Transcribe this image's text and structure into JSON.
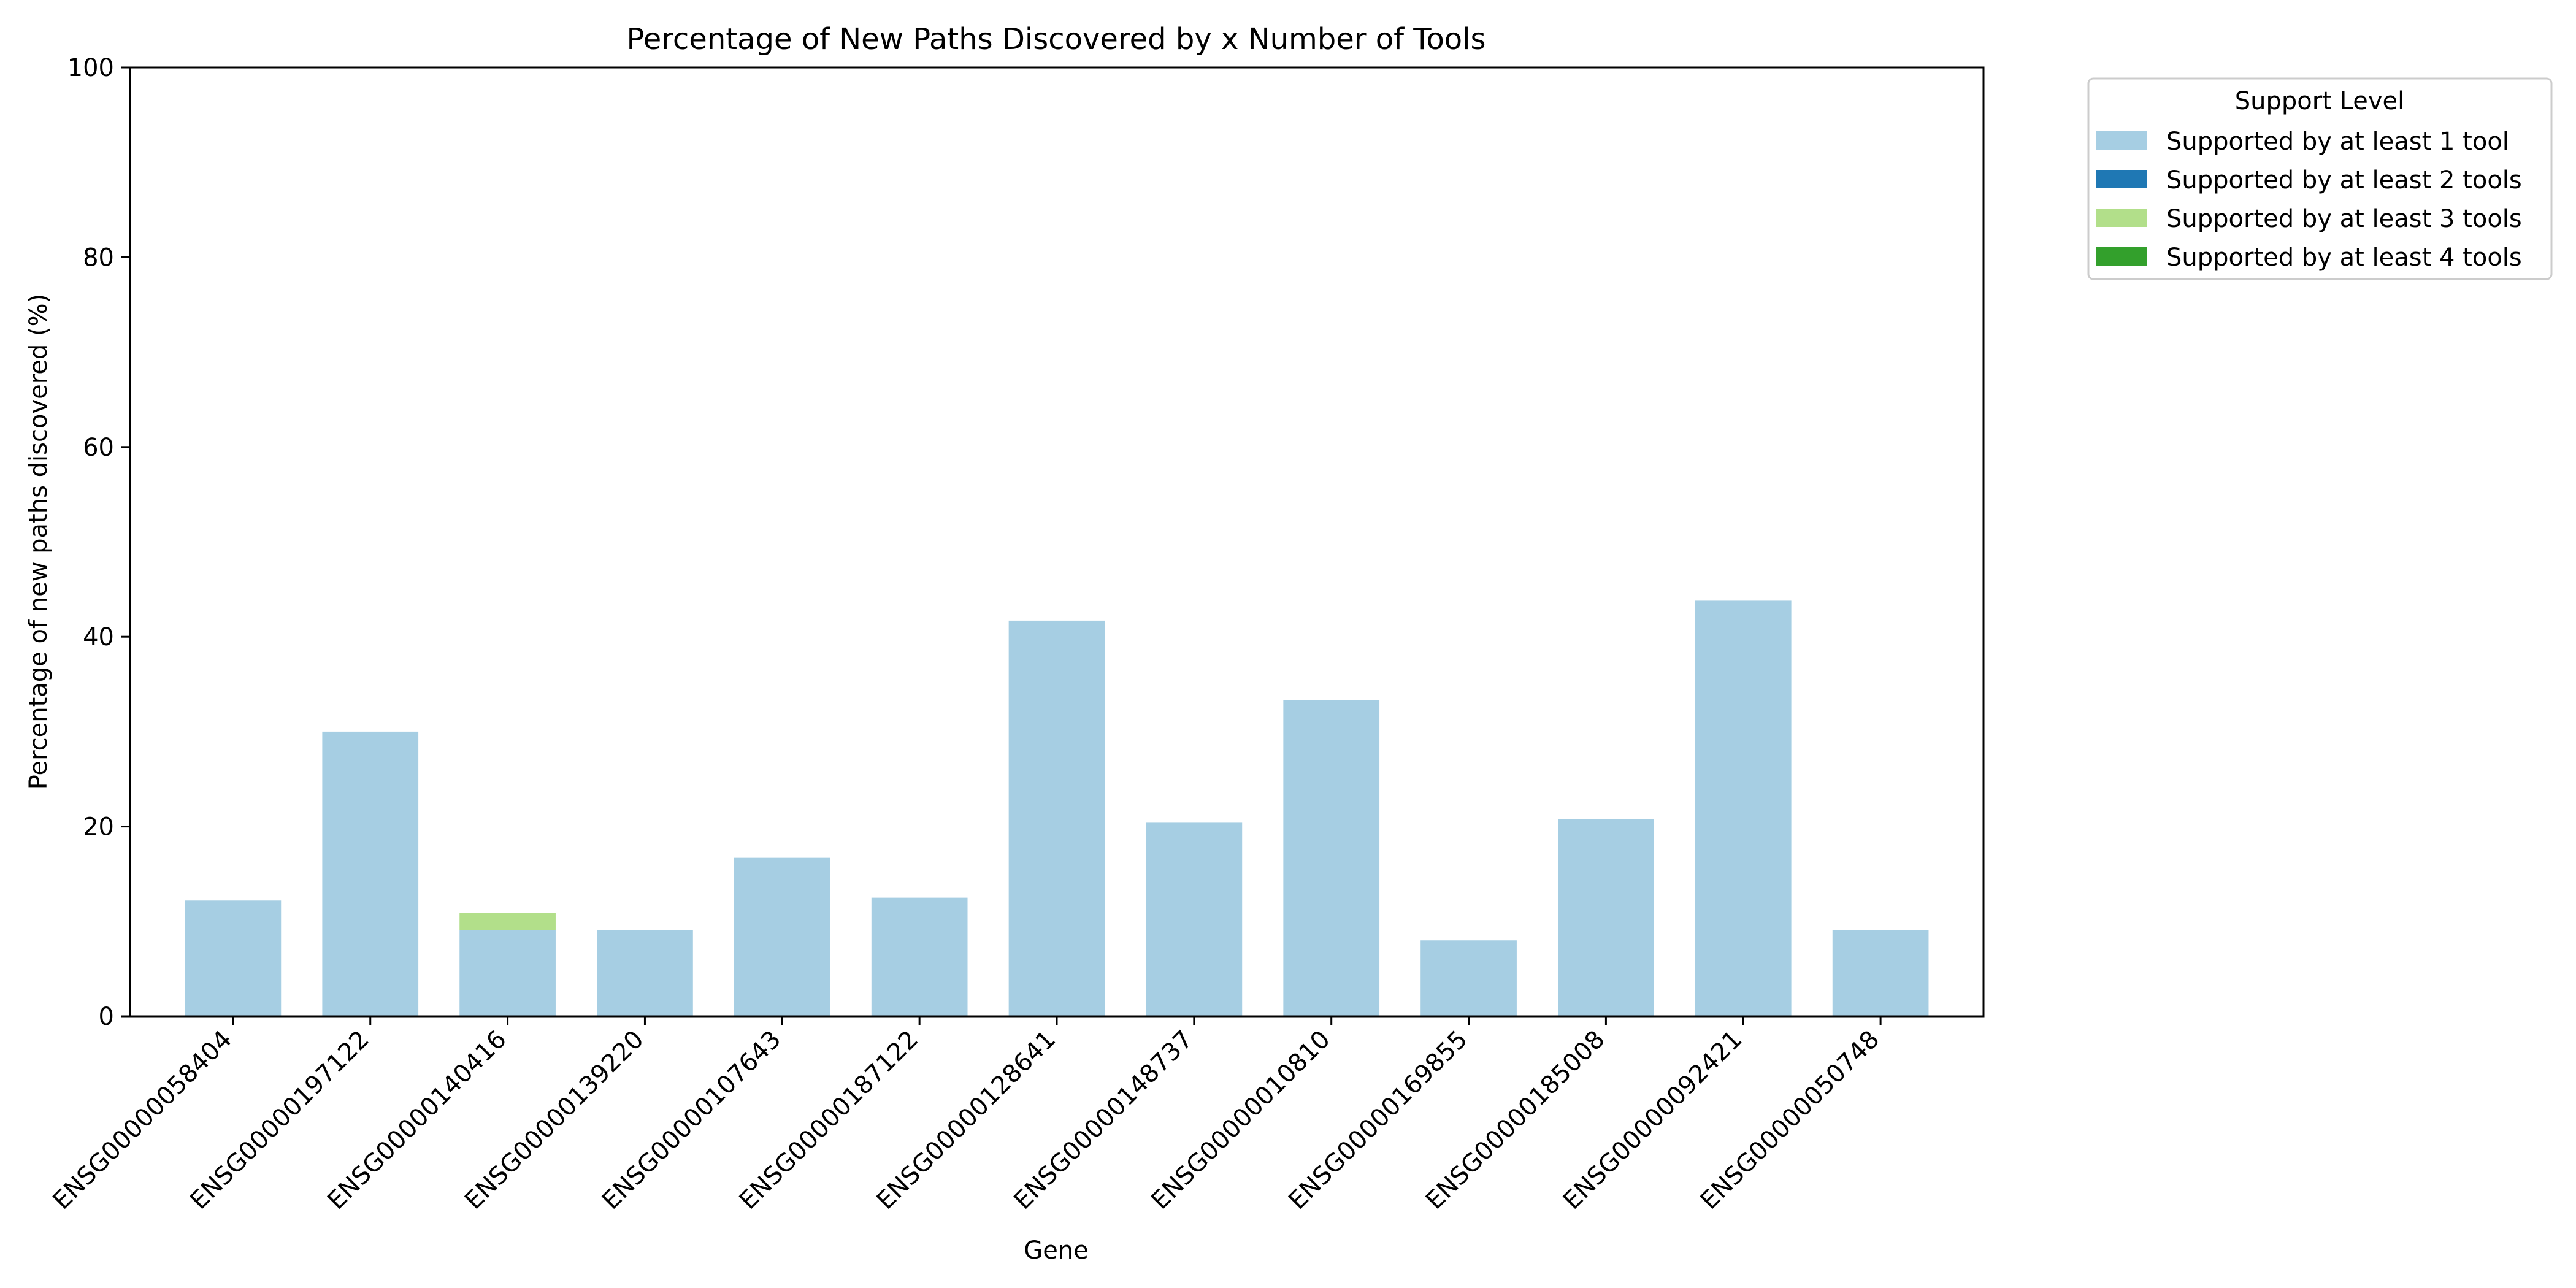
{
  "chart_data": {
    "type": "bar",
    "stacked": true,
    "title": "Percentage of New Paths Discovered by x Number of Tools",
    "xlabel": "Gene",
    "ylabel": "Percentage of new paths discovered (%)",
    "ylim": [
      0,
      100
    ],
    "yticks": [
      0,
      20,
      40,
      60,
      80,
      100
    ],
    "grid": false,
    "categories": [
      "ENSG00000058404",
      "ENSG00000197122",
      "ENSG00000140416",
      "ENSG00000139220",
      "ENSG00000107643",
      "ENSG00000187122",
      "ENSG00000128641",
      "ENSG00000148737",
      "ENSG00000010810",
      "ENSG00000169855",
      "ENSG00000185008",
      "ENSG00000092421",
      "ENSG00000050748"
    ],
    "series": [
      {
        "name": "Supported by at least 1 tool",
        "color": "#a6cee3",
        "values": [
          12.2,
          30.0,
          9.1,
          9.1,
          16.7,
          12.5,
          41.7,
          20.4,
          33.3,
          8.0,
          20.8,
          43.8,
          9.1
        ]
      },
      {
        "name": "Supported by at least 2 tools",
        "color": "#1f78b4",
        "values": [
          0,
          0,
          0,
          0,
          0,
          0,
          0,
          0,
          0,
          0,
          0,
          0,
          0
        ]
      },
      {
        "name": "Supported by at least 3 tools",
        "color": "#b2df8a",
        "values": [
          0,
          0,
          1.8,
          0,
          0,
          0,
          0,
          0,
          0,
          0,
          0,
          0,
          0
        ]
      },
      {
        "name": "Supported by at least 4 tools",
        "color": "#33a02c",
        "values": [
          0,
          0,
          0,
          0,
          0,
          0,
          0,
          0,
          0,
          0,
          0,
          0,
          0
        ]
      }
    ],
    "legend": {
      "title": "Support Level",
      "placement": "outside-top-right"
    }
  }
}
